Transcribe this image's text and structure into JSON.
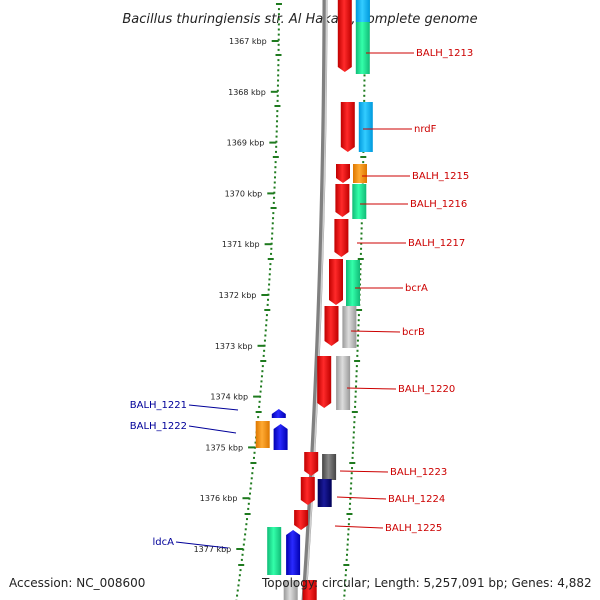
{
  "title": "Bacillus thuringiensis str. Al Hakam, complete genome",
  "footer": {
    "accession": "Accession: NC_008600",
    "topology": "Topology: circular; Length: 5,257,091 bp; Genes: 4,882"
  },
  "colors": {
    "forward_cds": "#ee0000",
    "reverse_cds": "#0000ee",
    "forward_label": "#cc0000",
    "reverse_label": "#000099",
    "tick": "#1e7a1e",
    "backbone": "#808080"
  },
  "ruler": {
    "unit_labels": [
      "1367 kbp",
      "1368 kbp",
      "1369 kbp",
      "1370 kbp",
      "1371 kbp",
      "1372 kbp",
      "1373 kbp",
      "1374 kbp",
      "1375 kbp",
      "1376 kbp",
      "1377 kbp"
    ]
  },
  "genes": [
    {
      "name": "BALH_1213",
      "strand": "forward"
    },
    {
      "name": "nrdF",
      "strand": "forward"
    },
    {
      "name": "BALH_1215",
      "strand": "forward"
    },
    {
      "name": "BALH_1216",
      "strand": "forward"
    },
    {
      "name": "BALH_1217",
      "strand": "forward"
    },
    {
      "name": "bcrA",
      "strand": "forward"
    },
    {
      "name": "bcrB",
      "strand": "forward"
    },
    {
      "name": "BALH_1220",
      "strand": "forward"
    },
    {
      "name": "BALH_1221",
      "strand": "reverse"
    },
    {
      "name": "BALH_1222",
      "strand": "reverse"
    },
    {
      "name": "BALH_1223",
      "strand": "forward"
    },
    {
      "name": "BALH_1224",
      "strand": "forward"
    },
    {
      "name": "BALH_1225",
      "strand": "forward"
    },
    {
      "name": "ldcA",
      "strand": "reverse"
    }
  ]
}
